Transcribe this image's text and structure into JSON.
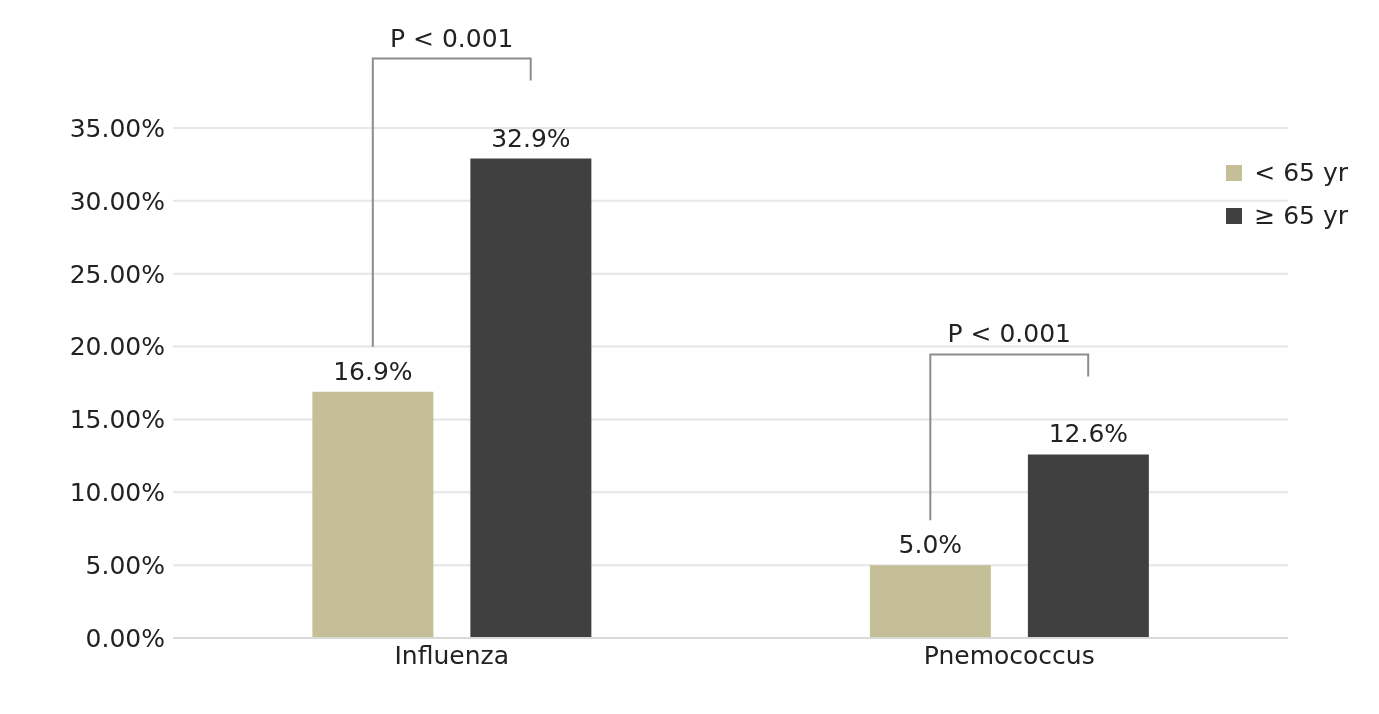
{
  "chart_data": {
    "type": "bar",
    "categories": [
      "Influenza",
      "Pnemococcus"
    ],
    "series": [
      {
        "name": "< 65 yr",
        "color": "#c4bf96",
        "values": [
          16.9,
          5.0
        ],
        "value_labels": [
          "16.9%",
          "5.0%"
        ]
      },
      {
        "name": "≥ 65 yr",
        "color": "#404040",
        "values": [
          32.9,
          12.6
        ],
        "value_labels": [
          "32.9%",
          "12.6%"
        ]
      }
    ],
    "ylim": [
      0,
      35
    ],
    "yticks": [
      {
        "value": 0,
        "label": "0.00%"
      },
      {
        "value": 5,
        "label": "5.00%"
      },
      {
        "value": 10,
        "label": "10.00%"
      },
      {
        "value": 15,
        "label": "15.00%"
      },
      {
        "value": 20,
        "label": "20.00%"
      },
      {
        "value": 25,
        "label": "25.00%"
      },
      {
        "value": 30,
        "label": "30.00%"
      },
      {
        "value": 35,
        "label": "35.00%"
      }
    ],
    "grid": "y",
    "legend": "top right",
    "annotations": [
      "P < 0.001",
      "P < 0.001"
    ]
  }
}
